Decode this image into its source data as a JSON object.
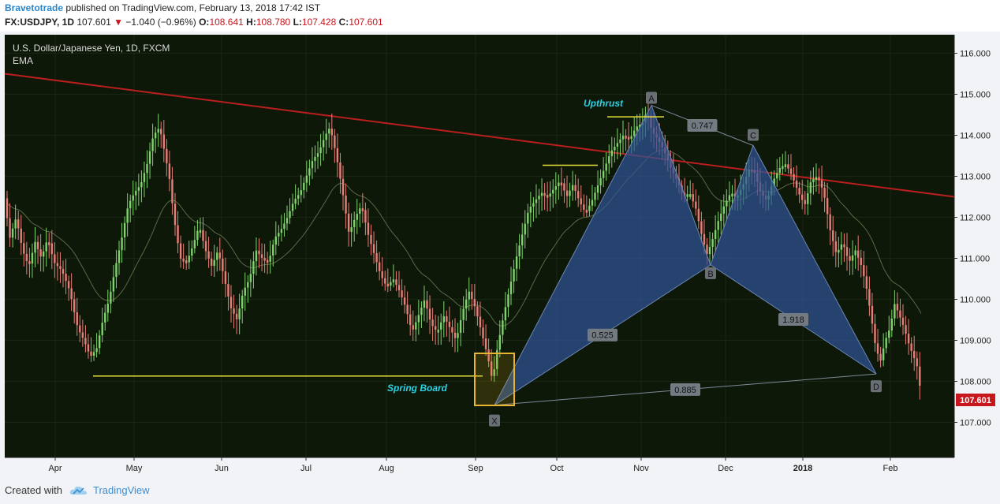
{
  "header": {
    "author": "Bravetotrade",
    "published": "published on TradingView.com, February 13, 2018 17:42 IST",
    "symbol": "FX:USDJPY, 1D",
    "last": "107.601",
    "change_arrow": "▼",
    "change": "−1.040 (−0.96%)",
    "o_label": "O:",
    "o": "108.641",
    "h_label": "H:",
    "h": "108.780",
    "l_label": "L:",
    "l": "107.428",
    "c_label": "C:",
    "c": "107.601"
  },
  "chart_data": {
    "type": "candlestick",
    "title": "U.S. Dollar/Japanese Yen, 1D, FXCM",
    "indicator": "EMA",
    "x_tick_labels": [
      "Apr",
      "May",
      "Jun",
      "Jul",
      "Aug",
      "Sep",
      "Oct",
      "Nov",
      "Dec",
      "2018",
      "Feb"
    ],
    "y_tick_labels": [
      "116.000",
      "115.000",
      "114.000",
      "113.000",
      "112.000",
      "111.000",
      "110.000",
      "109.000",
      "108.000",
      "107.000"
    ],
    "ylim": [
      106.05,
      116.6
    ],
    "last_price_tag": "107.601",
    "price_path": [
      [
        0,
        114.0
      ],
      [
        6,
        112.6
      ],
      [
        14,
        111.5
      ],
      [
        22,
        112.0
      ],
      [
        30,
        111.2
      ],
      [
        38,
        110.8
      ],
      [
        46,
        111.4
      ],
      [
        54,
        111.0
      ],
      [
        62,
        111.5
      ],
      [
        70,
        110.9
      ],
      [
        80,
        110.7
      ],
      [
        90,
        110.2
      ],
      [
        100,
        109.3
      ],
      [
        108,
        109.0
      ],
      [
        116,
        108.6
      ],
      [
        124,
        108.8
      ],
      [
        132,
        109.5
      ],
      [
        140,
        110.0
      ],
      [
        148,
        110.8
      ],
      [
        156,
        111.5
      ],
      [
        164,
        112.3
      ],
      [
        172,
        112.6
      ],
      [
        180,
        112.8
      ],
      [
        188,
        113.3
      ],
      [
        196,
        114.0
      ],
      [
        204,
        114.2
      ],
      [
        210,
        113.6
      ],
      [
        216,
        113.0
      ],
      [
        222,
        112.0
      ],
      [
        230,
        111.0
      ],
      [
        238,
        110.9
      ],
      [
        246,
        111.3
      ],
      [
        254,
        111.8
      ],
      [
        262,
        111.2
      ],
      [
        270,
        110.8
      ],
      [
        278,
        111.2
      ],
      [
        286,
        110.5
      ],
      [
        294,
        109.8
      ],
      [
        302,
        109.5
      ],
      [
        310,
        110.2
      ],
      [
        318,
        110.5
      ],
      [
        326,
        111.2
      ],
      [
        334,
        111.0
      ],
      [
        342,
        110.9
      ],
      [
        350,
        111.5
      ],
      [
        358,
        111.7
      ],
      [
        366,
        112.0
      ],
      [
        374,
        112.4
      ],
      [
        382,
        112.6
      ],
      [
        390,
        113.0
      ],
      [
        398,
        113.4
      ],
      [
        406,
        113.6
      ],
      [
        414,
        114.0
      ],
      [
        420,
        114.2
      ],
      [
        428,
        113.5
      ],
      [
        436,
        112.6
      ],
      [
        444,
        111.6
      ],
      [
        452,
        112.0
      ],
      [
        460,
        112.3
      ],
      [
        468,
        111.6
      ],
      [
        476,
        111.1
      ],
      [
        484,
        110.6
      ],
      [
        492,
        110.3
      ],
      [
        500,
        110.5
      ],
      [
        508,
        110.2
      ],
      [
        516,
        109.8
      ],
      [
        524,
        109.2
      ],
      [
        532,
        109.6
      ],
      [
        540,
        110.0
      ],
      [
        548,
        109.4
      ],
      [
        556,
        109.2
      ],
      [
        564,
        109.6
      ],
      [
        572,
        109.3
      ],
      [
        580,
        109.0
      ],
      [
        588,
        109.7
      ],
      [
        596,
        110.2
      ],
      [
        604,
        109.8
      ],
      [
        612,
        109.2
      ],
      [
        620,
        108.6
      ],
      [
        626,
        108.0
      ],
      [
        632,
        108.8
      ],
      [
        640,
        109.6
      ],
      [
        648,
        110.3
      ],
      [
        656,
        111.0
      ],
      [
        664,
        111.6
      ],
      [
        672,
        112.2
      ],
      [
        680,
        112.4
      ],
      [
        688,
        112.6
      ],
      [
        696,
        112.5
      ],
      [
        704,
        112.7
      ],
      [
        712,
        112.9
      ],
      [
        720,
        112.5
      ],
      [
        728,
        112.8
      ],
      [
        736,
        112.4
      ],
      [
        744,
        112.1
      ],
      [
        752,
        112.4
      ],
      [
        760,
        112.8
      ],
      [
        768,
        113.2
      ],
      [
        776,
        113.6
      ],
      [
        784,
        113.8
      ],
      [
        792,
        114.0
      ],
      [
        800,
        113.9
      ],
      [
        808,
        114.2
      ],
      [
        816,
        114.3
      ],
      [
        822,
        114.6
      ],
      [
        828,
        114.1
      ],
      [
        836,
        113.9
      ],
      [
        844,
        113.6
      ],
      [
        852,
        113.2
      ],
      [
        860,
        112.9
      ],
      [
        868,
        112.5
      ],
      [
        876,
        112.6
      ],
      [
        884,
        112.2
      ],
      [
        892,
        111.5
      ],
      [
        898,
        111.1
      ],
      [
        904,
        111.4
      ],
      [
        912,
        111.9
      ],
      [
        920,
        112.3
      ],
      [
        928,
        112.6
      ],
      [
        936,
        112.5
      ],
      [
        944,
        112.8
      ],
      [
        952,
        113.2
      ],
      [
        958,
        113.1
      ],
      [
        966,
        112.6
      ],
      [
        974,
        112.4
      ],
      [
        982,
        112.9
      ],
      [
        990,
        113.2
      ],
      [
        998,
        113.3
      ],
      [
        1006,
        113.0
      ],
      [
        1014,
        112.6
      ],
      [
        1022,
        112.3
      ],
      [
        1030,
        112.9
      ],
      [
        1038,
        113.0
      ],
      [
        1046,
        112.6
      ],
      [
        1054,
        111.7
      ],
      [
        1062,
        111.1
      ],
      [
        1070,
        111.4
      ],
      [
        1078,
        110.9
      ],
      [
        1086,
        111.2
      ],
      [
        1094,
        110.8
      ],
      [
        1100,
        110.3
      ],
      [
        1106,
        109.6
      ],
      [
        1112,
        108.8
      ],
      [
        1118,
        108.5
      ],
      [
        1124,
        109.0
      ],
      [
        1130,
        109.3
      ],
      [
        1136,
        109.9
      ],
      [
        1142,
        109.6
      ],
      [
        1148,
        109.3
      ],
      [
        1154,
        108.9
      ],
      [
        1160,
        108.6
      ],
      [
        1164,
        108.4
      ],
      [
        1170,
        107.6
      ]
    ],
    "trendline": {
      "from": [
        0,
        115.5
      ],
      "to": [
        1210,
        112.5
      ]
    },
    "harmonic_pattern": {
      "points": [
        {
          "name": "X",
          "price": 107.42
        },
        {
          "name": "A",
          "price": 114.73
        },
        {
          "name": "B",
          "price": 110.84
        },
        {
          "name": "C",
          "price": 113.75
        },
        {
          "name": "D",
          "price": 108.18
        }
      ],
      "ratios": [
        "0.525",
        "0.747",
        "1.918",
        "0.885"
      ]
    },
    "annotations": [
      "Upthrust",
      "Spring Board"
    ],
    "horizontal_levels": [
      {
        "price": 114.45,
        "x_from": 770,
        "x_to": 842
      },
      {
        "price": 113.27,
        "x_from": 688,
        "x_to": 758
      },
      {
        "price": 108.13,
        "x_from": 118,
        "x_to": 612
      }
    ]
  },
  "footer": {
    "created_with": "Created with",
    "brand": "TradingView"
  },
  "colors": {
    "plot_bg": "#0e1809",
    "up_candle": "#7ed36b",
    "down_candle": "#e87e78",
    "trendline": "#bb1e1e",
    "pattern_fill": "#2f5596",
    "level_line": "#e6e23a",
    "annotation_text": "#2bd2e6"
  }
}
